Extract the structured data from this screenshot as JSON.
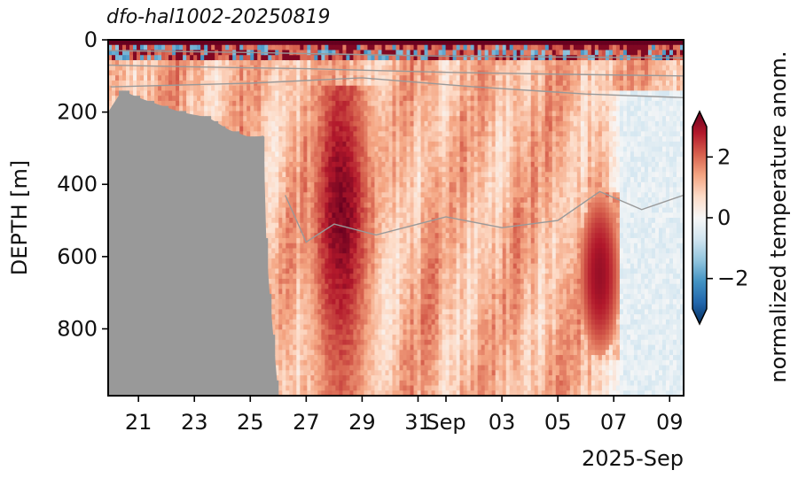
{
  "chart_data": {
    "type": "heatmap",
    "title": "dfo-hal1002-20250819",
    "ylabel": "DEPTH [m]",
    "xlabel": "2025-Sep",
    "y_inverted": true,
    "ylim": [
      0,
      985
    ],
    "y_ticks": [
      0,
      200,
      400,
      600,
      800
    ],
    "x_range": [
      "2025-08-19T22:00",
      "2025-09-09T12:00"
    ],
    "x_ticks": [
      {
        "date": "2025-08-21",
        "label": "21"
      },
      {
        "date": "2025-08-23",
        "label": "23"
      },
      {
        "date": "2025-08-25",
        "label": "25"
      },
      {
        "date": "2025-08-27",
        "label": "27"
      },
      {
        "date": "2025-08-29",
        "label": "29"
      },
      {
        "date": "2025-08-31",
        "label": "31"
      },
      {
        "date": "2025-09-01",
        "label": "Sep"
      },
      {
        "date": "2025-09-03",
        "label": "03"
      },
      {
        "date": "2025-09-05",
        "label": "05"
      },
      {
        "date": "2025-09-07",
        "label": "07"
      },
      {
        "date": "2025-09-09",
        "label": "09"
      }
    ],
    "colorbar": {
      "label": "normalized temperature anom.",
      "range": [
        -3,
        3
      ],
      "ticks": [
        -2,
        0,
        2
      ],
      "tick_labels": [
        "−2",
        "0",
        "2"
      ],
      "colormap": "RdBu_r",
      "extend": "both",
      "colors": [
        "#053061",
        "#2166ac",
        "#4393c3",
        "#92c5de",
        "#d1e5f0",
        "#f7f7f7",
        "#fddbc7",
        "#f4a582",
        "#d6604d",
        "#b2182b",
        "#67001f"
      ]
    },
    "no_data_color": "#999999",
    "grid": false,
    "contour_color": "#999999",
    "features": {
      "seafloor_mask_profile": [
        {
          "date": "2025-08-19T22:00",
          "depth": 200
        },
        {
          "date": "2025-08-20T10:00",
          "depth": 140
        },
        {
          "date": "2025-08-21T00:00",
          "depth": 160
        },
        {
          "date": "2025-08-22T12:00",
          "depth": 200
        },
        {
          "date": "2025-08-23T12:00",
          "depth": 215
        },
        {
          "date": "2025-08-24T06:00",
          "depth": 250
        },
        {
          "date": "2025-08-25T00:00",
          "depth": 270
        },
        {
          "date": "2025-08-25T12:00",
          "depth": 265
        },
        {
          "date": "2025-08-25T14:00",
          "depth": 600
        },
        {
          "date": "2025-08-26T00:00",
          "depth": 985
        }
      ],
      "warm_anomaly_1": {
        "start": "2025-08-26T12:00",
        "end": "2025-08-29T18:00",
        "peak_date": "2025-08-28T06:00",
        "top_depth": 130,
        "bottom_depth": 985,
        "peak_value": 2.8
      },
      "warm_anomaly_2": {
        "start": "2025-09-05T18:00",
        "end": "2025-09-07T06:00",
        "peak_date": "2025-09-06T12:00",
        "top_depth": 420,
        "bottom_depth": 880,
        "peak_value": 2.6
      },
      "cool_region": {
        "start": "2025-09-06T12:00",
        "end": "2025-09-09T12:00",
        "value": -0.3
      },
      "surface_layer": {
        "depth_range": [
          0,
          60
        ],
        "value_range": [
          -2,
          3
        ]
      },
      "background_value": 1.0
    },
    "contours": [
      {
        "name": "c1",
        "points": [
          [
            "2025-08-19T22:00",
            30
          ],
          [
            "2025-08-25T00:00",
            35
          ],
          [
            "2025-09-01T00:00",
            45
          ],
          [
            "2025-09-09T12:00",
            50
          ]
        ]
      },
      {
        "name": "c2",
        "points": [
          [
            "2025-08-19T22:00",
            70
          ],
          [
            "2025-08-23T00:00",
            75
          ],
          [
            "2025-08-27T00:00",
            80
          ],
          [
            "2025-09-01T00:00",
            90
          ],
          [
            "2025-09-05T00:00",
            95
          ],
          [
            "2025-09-09T12:00",
            100
          ]
        ]
      },
      {
        "name": "c3",
        "points": [
          [
            "2025-08-20T00:00",
            130
          ],
          [
            "2025-08-25T00:00",
            120
          ],
          [
            "2025-08-29T00:00",
            105
          ],
          [
            "2025-09-02T00:00",
            130
          ],
          [
            "2025-09-06T00:00",
            150
          ],
          [
            "2025-09-09T12:00",
            160
          ]
        ]
      },
      {
        "name": "c4",
        "points": [
          [
            "2025-08-26T06:00",
            430
          ],
          [
            "2025-08-27T00:00",
            560
          ],
          [
            "2025-08-28T00:00",
            510
          ],
          [
            "2025-08-29T12:00",
            540
          ],
          [
            "2025-09-01T00:00",
            490
          ],
          [
            "2025-09-03T00:00",
            520
          ],
          [
            "2025-09-05T00:00",
            500
          ],
          [
            "2025-09-06T12:00",
            420
          ],
          [
            "2025-09-08T00:00",
            470
          ],
          [
            "2025-09-09T12:00",
            430
          ]
        ]
      }
    ]
  }
}
